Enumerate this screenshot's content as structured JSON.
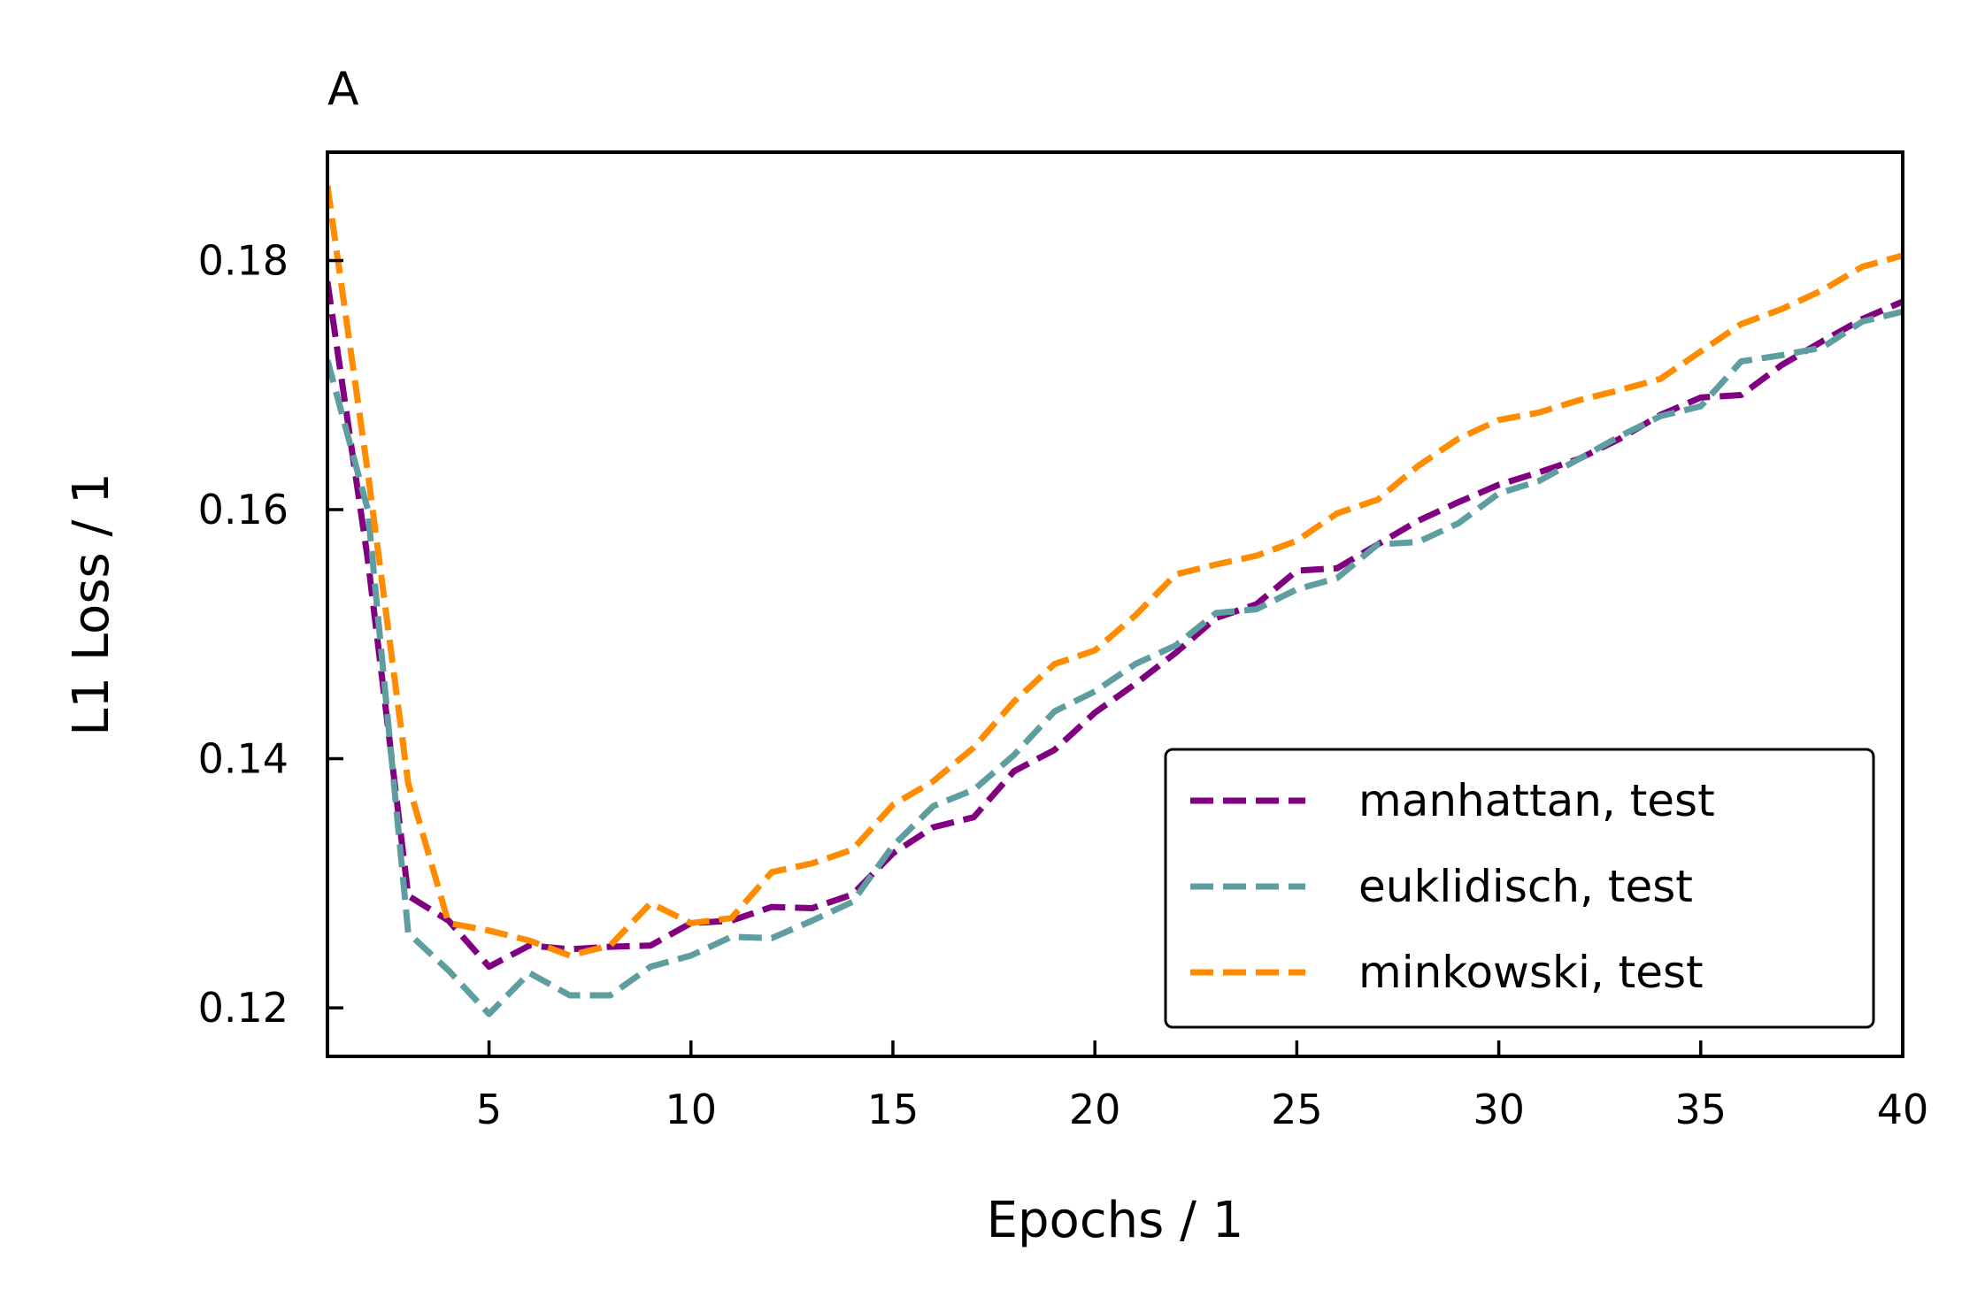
{
  "chart_data": {
    "type": "line",
    "panel_label": "A",
    "xlabel": "Epochs / 1",
    "ylabel": "L1 Loss / 1",
    "xlim": [
      1,
      40
    ],
    "ylim": [
      0.1161,
      0.1887
    ],
    "x_ticks": [
      5,
      10,
      15,
      20,
      25,
      30,
      35,
      40
    ],
    "y_ticks": [
      0.12,
      0.14,
      0.16,
      0.18
    ],
    "x_tick_labels": [
      "5",
      "10",
      "15",
      "20",
      "25",
      "30",
      "35",
      "40"
    ],
    "y_tick_labels": [
      "0.12",
      "0.14",
      "0.16",
      "0.18"
    ],
    "grid": false,
    "legend_position": "lower-right",
    "x": [
      1,
      2,
      3,
      4,
      5,
      6,
      7,
      8,
      9,
      10,
      11,
      12,
      13,
      14,
      15,
      16,
      17,
      18,
      19,
      20,
      21,
      22,
      23,
      24,
      25,
      26,
      27,
      28,
      29,
      30,
      31,
      32,
      33,
      34,
      35,
      36,
      37,
      38,
      39,
      40
    ],
    "series": [
      {
        "name": "manhattan, test",
        "color": "#800080",
        "values": [
          0.1783,
          0.156,
          0.129,
          0.127,
          0.1233,
          0.125,
          0.1247,
          0.1249,
          0.125,
          0.1268,
          0.127,
          0.1281,
          0.128,
          0.1291,
          0.1324,
          0.1345,
          0.1353,
          0.139,
          0.1407,
          0.1437,
          0.146,
          0.1485,
          0.1513,
          0.1524,
          0.1551,
          0.1553,
          0.1572,
          0.1591,
          0.1606,
          0.162,
          0.163,
          0.1641,
          0.1657,
          0.1676,
          0.169,
          0.1692,
          0.1716,
          0.1735,
          0.1753,
          0.1767
        ]
      },
      {
        "name": "euklidisch, test",
        "color": "#5f9ea0",
        "values": [
          0.172,
          0.16,
          0.126,
          0.123,
          0.1195,
          0.1228,
          0.121,
          0.121,
          0.1233,
          0.1242,
          0.1257,
          0.1256,
          0.127,
          0.1285,
          0.133,
          0.1362,
          0.1375,
          0.1403,
          0.1438,
          0.1454,
          0.1476,
          0.1491,
          0.1517,
          0.152,
          0.1536,
          0.1545,
          0.1572,
          0.1574,
          0.1589,
          0.1613,
          0.1623,
          0.1641,
          0.1659,
          0.1675,
          0.1683,
          0.1719,
          0.1724,
          0.173,
          0.1751,
          0.1759
        ]
      },
      {
        "name": "minkowski, test",
        "color": "#ff8c00",
        "values": [
          0.186,
          0.163,
          0.138,
          0.1268,
          0.1262,
          0.1254,
          0.1242,
          0.125,
          0.1284,
          0.1268,
          0.1272,
          0.1309,
          0.1316,
          0.1327,
          0.1363,
          0.1382,
          0.1409,
          0.1446,
          0.1476,
          0.1487,
          0.1515,
          0.1548,
          0.1556,
          0.1563,
          0.1575,
          0.1597,
          0.1608,
          0.1635,
          0.1657,
          0.1672,
          0.1678,
          0.1688,
          0.1696,
          0.1705,
          0.1727,
          0.1749,
          0.1761,
          0.1776,
          0.1795,
          0.1804
        ]
      }
    ]
  }
}
